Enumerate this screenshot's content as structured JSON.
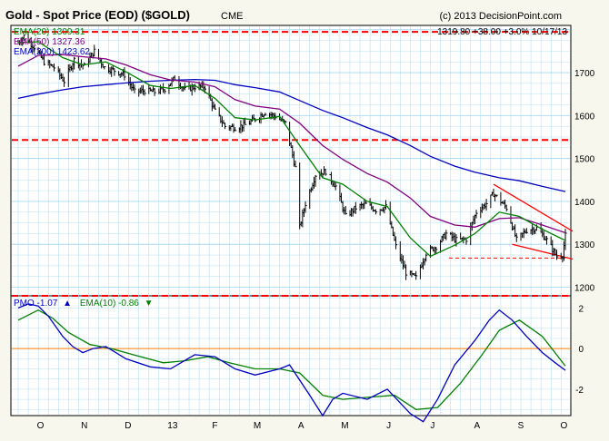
{
  "header": {
    "title": "Gold - Spot Price (EOD) ($GOLD)",
    "exchange": "CME",
    "copyright": "(c) 2013 DecisionPoint.com",
    "quote": "1319.80  +38.00  +3.0%  10/17/13"
  },
  "legend_price": [
    {
      "label": "EMA(20) 1309.31",
      "color": "#008000"
    },
    {
      "label": "EMA(50) 1327.36",
      "color": "#800080"
    },
    {
      "label": "EMA(200) 1423.62",
      "color": "#0000c0"
    }
  ],
  "legend_pmo": {
    "pmo_label": "PMO  -1.07",
    "pmo_arrow": "▲",
    "ema_label": "EMA(10)  -0.86",
    "ema_arrow": "▼",
    "pmo_color": "#0000c0",
    "ema_color": "#008000"
  },
  "colors": {
    "price_bars": "#000000",
    "support_lines": "#ff0000",
    "grid": "#a8d8f0",
    "panel_bg": "#ffffff"
  },
  "chart_data": [
    {
      "type": "ohlc",
      "title": "Gold - Spot Price (EOD) ($GOLD)",
      "x_ticks": [
        "O",
        "N",
        "D",
        "13",
        "F",
        "M",
        "A",
        "M",
        "J",
        "J",
        "A",
        "S",
        "O"
      ],
      "x_range": [
        "2012-10-01",
        "2013-10-17"
      ],
      "y_ticks": [
        1200,
        1300,
        1400,
        1500,
        1600,
        1700
      ],
      "ylim": [
        1180,
        1810
      ],
      "grid": true,
      "horizontal_lines": [
        {
          "value": 1795,
          "style": "dashed",
          "color": "#ff0000"
        },
        {
          "value": 1543,
          "style": "dashed",
          "color": "#ff0000"
        },
        {
          "value": 1180,
          "style": "dashed",
          "color": "#ff0000"
        },
        {
          "value": 1268,
          "style": "dashed-thin",
          "color": "#ff0000",
          "from": "2013-07-28",
          "to": "2013-10-17"
        }
      ],
      "trendlines": [
        {
          "from": {
            "x": "2013-08-28",
            "y": 1440
          },
          "to": {
            "x": "2013-10-17",
            "y": 1320
          }
        },
        {
          "from": {
            "x": "2013-09-10",
            "y": 1300
          },
          "to": {
            "x": "2013-10-17",
            "y": 1255
          }
        }
      ],
      "close": [
        [
          "2012-10-01",
          1770
        ],
        [
          "2012-10-05",
          1785
        ],
        [
          "2012-10-12",
          1760
        ],
        [
          "2012-10-19",
          1725
        ],
        [
          "2012-10-26",
          1712
        ],
        [
          "2012-11-02",
          1680
        ],
        [
          "2012-11-09",
          1730
        ],
        [
          "2012-11-16",
          1715
        ],
        [
          "2012-11-23",
          1750
        ],
        [
          "2012-11-30",
          1712
        ],
        [
          "2012-12-07",
          1705
        ],
        [
          "2012-12-14",
          1695
        ],
        [
          "2012-12-21",
          1655
        ],
        [
          "2012-12-28",
          1658
        ],
        [
          "2013-01-04",
          1655
        ],
        [
          "2013-01-11",
          1662
        ],
        [
          "2013-01-18",
          1687
        ],
        [
          "2013-01-25",
          1660
        ],
        [
          "2013-02-01",
          1667
        ],
        [
          "2013-02-08",
          1667
        ],
        [
          "2013-02-15",
          1610
        ],
        [
          "2013-02-22",
          1575
        ],
        [
          "2013-03-01",
          1572
        ],
        [
          "2013-03-08",
          1578
        ],
        [
          "2013-03-15",
          1592
        ],
        [
          "2013-03-22",
          1608
        ],
        [
          "2013-03-29",
          1598
        ],
        [
          "2013-04-05",
          1582
        ],
        [
          "2013-04-12",
          1478
        ],
        [
          "2013-04-15",
          1340
        ],
        [
          "2013-04-19",
          1395
        ],
        [
          "2013-04-26",
          1462
        ],
        [
          "2013-05-03",
          1470
        ],
        [
          "2013-05-10",
          1435
        ],
        [
          "2013-05-17",
          1365
        ],
        [
          "2013-05-24",
          1385
        ],
        [
          "2013-05-31",
          1393
        ],
        [
          "2013-06-07",
          1380
        ],
        [
          "2013-06-14",
          1387
        ],
        [
          "2013-06-21",
          1295
        ],
        [
          "2013-06-28",
          1234
        ],
        [
          "2013-07-05",
          1222
        ],
        [
          "2013-07-12",
          1280
        ],
        [
          "2013-07-19",
          1295
        ],
        [
          "2013-07-26",
          1325
        ],
        [
          "2013-08-02",
          1310
        ],
        [
          "2013-08-09",
          1312
        ],
        [
          "2013-08-16",
          1375
        ],
        [
          "2013-08-23",
          1395
        ],
        [
          "2013-08-28",
          1418
        ],
        [
          "2013-09-06",
          1385
        ],
        [
          "2013-09-13",
          1310
        ],
        [
          "2013-09-20",
          1333
        ],
        [
          "2013-09-27",
          1338
        ],
        [
          "2013-10-04",
          1310
        ],
        [
          "2013-10-11",
          1272
        ],
        [
          "2013-10-15",
          1275
        ],
        [
          "2013-10-17",
          1320
        ]
      ],
      "ema20": [
        [
          "2012-10-01",
          1770
        ],
        [
          "2012-10-15",
          1772
        ],
        [
          "2012-11-01",
          1735
        ],
        [
          "2012-11-15",
          1718
        ],
        [
          "2012-12-01",
          1725
        ],
        [
          "2012-12-15",
          1702
        ],
        [
          "2013-01-01",
          1670
        ],
        [
          "2013-01-15",
          1663
        ],
        [
          "2013-02-01",
          1670
        ],
        [
          "2013-02-15",
          1640
        ],
        [
          "2013-03-01",
          1595
        ],
        [
          "2013-03-15",
          1590
        ],
        [
          "2013-04-01",
          1598
        ],
        [
          "2013-04-15",
          1530
        ],
        [
          "2013-05-01",
          1455
        ],
        [
          "2013-05-15",
          1440
        ],
        [
          "2013-06-01",
          1400
        ],
        [
          "2013-06-15",
          1388
        ],
        [
          "2013-07-01",
          1315
        ],
        [
          "2013-07-15",
          1272
        ],
        [
          "2013-08-01",
          1298
        ],
        [
          "2013-08-15",
          1325
        ],
        [
          "2013-09-01",
          1375
        ],
        [
          "2013-09-15",
          1365
        ],
        [
          "2013-10-01",
          1335
        ],
        [
          "2013-10-17",
          1309
        ]
      ],
      "ema50": [
        [
          "2012-10-01",
          1715
        ],
        [
          "2012-10-15",
          1740
        ],
        [
          "2012-11-01",
          1742
        ],
        [
          "2012-11-15",
          1737
        ],
        [
          "2012-12-01",
          1732
        ],
        [
          "2012-12-15",
          1718
        ],
        [
          "2013-01-01",
          1695
        ],
        [
          "2013-01-15",
          1683
        ],
        [
          "2013-02-01",
          1678
        ],
        [
          "2013-02-15",
          1667
        ],
        [
          "2013-03-01",
          1637
        ],
        [
          "2013-03-15",
          1622
        ],
        [
          "2013-04-01",
          1615
        ],
        [
          "2013-04-15",
          1582
        ],
        [
          "2013-05-01",
          1530
        ],
        [
          "2013-05-15",
          1498
        ],
        [
          "2013-06-01",
          1465
        ],
        [
          "2013-06-15",
          1445
        ],
        [
          "2013-07-01",
          1408
        ],
        [
          "2013-07-15",
          1365
        ],
        [
          "2013-08-01",
          1345
        ],
        [
          "2013-08-15",
          1340
        ],
        [
          "2013-09-01",
          1360
        ],
        [
          "2013-09-15",
          1362
        ],
        [
          "2013-10-01",
          1345
        ],
        [
          "2013-10-17",
          1327
        ]
      ],
      "ema200": [
        [
          "2012-10-01",
          1640
        ],
        [
          "2012-10-15",
          1650
        ],
        [
          "2012-11-01",
          1660
        ],
        [
          "2012-11-15",
          1667
        ],
        [
          "2012-12-01",
          1672
        ],
        [
          "2012-12-15",
          1676
        ],
        [
          "2013-01-01",
          1680
        ],
        [
          "2013-01-15",
          1682
        ],
        [
          "2013-02-01",
          1684
        ],
        [
          "2013-02-15",
          1682
        ],
        [
          "2013-03-01",
          1672
        ],
        [
          "2013-03-15",
          1665
        ],
        [
          "2013-04-01",
          1655
        ],
        [
          "2013-04-15",
          1635
        ],
        [
          "2013-05-01",
          1612
        ],
        [
          "2013-05-15",
          1595
        ],
        [
          "2013-06-01",
          1572
        ],
        [
          "2013-06-15",
          1555
        ],
        [
          "2013-07-01",
          1530
        ],
        [
          "2013-07-15",
          1505
        ],
        [
          "2013-08-01",
          1482
        ],
        [
          "2013-08-15",
          1468
        ],
        [
          "2013-09-01",
          1455
        ],
        [
          "2013-09-15",
          1448
        ],
        [
          "2013-10-01",
          1435
        ],
        [
          "2013-10-17",
          1423
        ]
      ]
    },
    {
      "type": "line",
      "title": "PMO",
      "y_ticks": [
        -2,
        0,
        2
      ],
      "ylim": [
        -3.3,
        2.6
      ],
      "grid": true,
      "zero_line_color": "#ff8000",
      "series": [
        {
          "name": "PMO",
          "color": "#0000c0",
          "points": [
            [
              "2012-10-01",
              2.0
            ],
            [
              "2012-10-08",
              2.2
            ],
            [
              "2012-10-15",
              2.1
            ],
            [
              "2012-10-22",
              1.6
            ],
            [
              "2012-11-01",
              0.6
            ],
            [
              "2012-11-08",
              0.1
            ],
            [
              "2012-11-15",
              -0.2
            ],
            [
              "2012-11-22",
              0.0
            ],
            [
              "2012-12-01",
              0.1
            ],
            [
              "2012-12-08",
              -0.2
            ],
            [
              "2012-12-15",
              -0.5
            ],
            [
              "2013-01-01",
              -0.9
            ],
            [
              "2013-01-15",
              -1.0
            ],
            [
              "2013-02-01",
              -0.3
            ],
            [
              "2013-02-15",
              -0.4
            ],
            [
              "2013-03-01",
              -1.0
            ],
            [
              "2013-03-15",
              -1.3
            ],
            [
              "2013-04-01",
              -1.0
            ],
            [
              "2013-04-08",
              -0.8
            ],
            [
              "2013-04-22",
              -2.3
            ],
            [
              "2013-05-01",
              -3.3
            ],
            [
              "2013-05-08",
              -2.5
            ],
            [
              "2013-05-15",
              -2.2
            ],
            [
              "2013-06-01",
              -2.5
            ],
            [
              "2013-06-15",
              -2.0
            ],
            [
              "2013-07-01",
              -3.2
            ],
            [
              "2013-07-10",
              -3.6
            ],
            [
              "2013-07-20",
              -2.5
            ],
            [
              "2013-08-01",
              -0.8
            ],
            [
              "2013-08-15",
              0.4
            ],
            [
              "2013-08-25",
              1.4
            ],
            [
              "2013-09-01",
              1.9
            ],
            [
              "2013-09-10",
              1.4
            ],
            [
              "2013-09-20",
              0.6
            ],
            [
              "2013-10-01",
              -0.2
            ],
            [
              "2013-10-10",
              -0.7
            ],
            [
              "2013-10-17",
              -1.07
            ]
          ]
        },
        {
          "name": "EMA(10)",
          "color": "#008000",
          "points": [
            [
              "2012-10-01",
              1.4
            ],
            [
              "2012-10-15",
              1.9
            ],
            [
              "2012-10-25",
              1.5
            ],
            [
              "2012-11-05",
              0.8
            ],
            [
              "2012-11-20",
              0.2
            ],
            [
              "2012-12-05",
              0.0
            ],
            [
              "2012-12-20",
              -0.3
            ],
            [
              "2013-01-10",
              -0.7
            ],
            [
              "2013-01-25",
              -0.6
            ],
            [
              "2013-02-10",
              -0.4
            ],
            [
              "2013-02-25",
              -0.7
            ],
            [
              "2013-03-15",
              -1.0
            ],
            [
              "2013-04-01",
              -1.0
            ],
            [
              "2013-04-15",
              -1.2
            ],
            [
              "2013-05-01",
              -2.3
            ],
            [
              "2013-05-15",
              -2.5
            ],
            [
              "2013-06-01",
              -2.4
            ],
            [
              "2013-06-20",
              -2.3
            ],
            [
              "2013-07-05",
              -3.0
            ],
            [
              "2013-07-20",
              -2.9
            ],
            [
              "2013-08-05",
              -1.7
            ],
            [
              "2013-08-20",
              -0.3
            ],
            [
              "2013-09-01",
              0.9
            ],
            [
              "2013-09-15",
              1.4
            ],
            [
              "2013-10-01",
              0.6
            ],
            [
              "2013-10-17",
              -0.86
            ]
          ]
        }
      ]
    }
  ]
}
